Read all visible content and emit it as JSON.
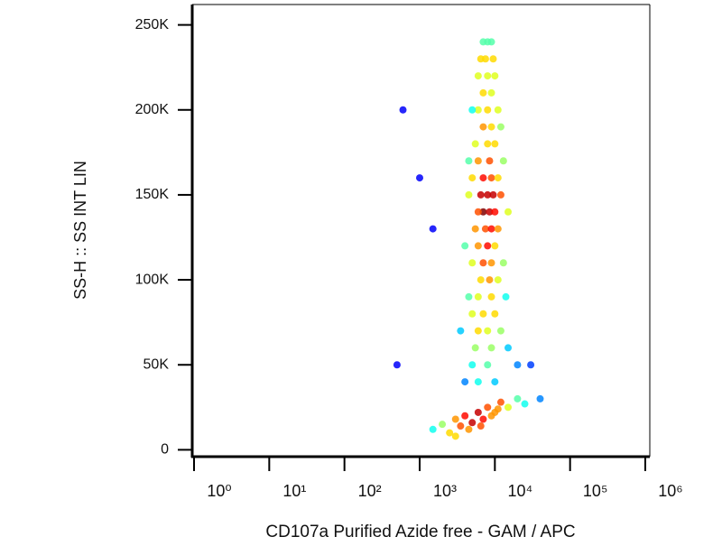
{
  "chart_data": {
    "type": "scatter",
    "xlabel": "CD107a Purified Azide free - GAM / APC",
    "ylabel": "SS-H :: SS INT LIN",
    "xscale": "log",
    "xlim": [
      1,
      1000000
    ],
    "ylim": [
      -3500,
      262000
    ],
    "xticks": [
      {
        "value": 1,
        "label": "10⁰"
      },
      {
        "value": 10,
        "label": "10¹"
      },
      {
        "value": 100,
        "label": "10²"
      },
      {
        "value": 1000,
        "label": "10³"
      },
      {
        "value": 10000,
        "label": "10⁴"
      },
      {
        "value": 100000,
        "label": "10⁵"
      },
      {
        "value": 1000000,
        "label": "10⁶"
      }
    ],
    "yticks": [
      0,
      {
        "value": 50000,
        "label": "50K"
      },
      {
        "value": 100000,
        "label": "100K"
      },
      {
        "value": 150000,
        "label": "150K"
      },
      {
        "value": 200000,
        "label": "200K"
      },
      {
        "value": 250000,
        "label": "250K"
      }
    ],
    "x": [
      7000,
      9000,
      8000,
      7500,
      9500,
      6500,
      8000,
      10000,
      6000,
      7000,
      9000,
      6000,
      8000,
      11000,
      5000,
      7000,
      9000,
      12000,
      5500,
      8000,
      10000,
      6000,
      8500,
      13000,
      4500,
      7000,
      9000,
      11000,
      5000,
      6500,
      8000,
      9500,
      12000,
      4500,
      7000,
      8500,
      10000,
      6000,
      15000,
      7500,
      9000,
      5500,
      11000,
      6000,
      8000,
      10000,
      4000,
      7000,
      9000,
      5000,
      13000,
      6500,
      8500,
      11000,
      6000,
      9000,
      4500,
      14000,
      7000,
      10000,
      5000,
      6000,
      8000,
      12000,
      3500,
      5500,
      9000,
      15000,
      5000,
      8000,
      20000,
      6000,
      10000,
      4000,
      1500,
      2000,
      2500,
      3000,
      3500,
      4000,
      5000,
      6000,
      7000,
      8000,
      10000,
      12000,
      15000,
      20000,
      25000,
      4500,
      3000,
      6500,
      9000,
      11000,
      600,
      1000,
      40000,
      500,
      30000,
      1500
    ],
    "values": [
      240000,
      240000,
      240000,
      230000,
      230000,
      230000,
      220000,
      220000,
      220000,
      210000,
      210000,
      200000,
      200000,
      200000,
      200000,
      190000,
      190000,
      190000,
      180000,
      180000,
      180000,
      170000,
      170000,
      170000,
      170000,
      160000,
      160000,
      160000,
      160000,
      150000,
      150000,
      150000,
      150000,
      150000,
      140000,
      140000,
      140000,
      140000,
      140000,
      130000,
      130000,
      130000,
      130000,
      120000,
      120000,
      120000,
      120000,
      110000,
      110000,
      110000,
      110000,
      100000,
      100000,
      100000,
      90000,
      90000,
      90000,
      90000,
      80000,
      80000,
      80000,
      70000,
      70000,
      70000,
      70000,
      60000,
      60000,
      60000,
      50000,
      50000,
      50000,
      40000,
      40000,
      40000,
      12000,
      15000,
      10000,
      18000,
      14000,
      20000,
      16000,
      22000,
      18000,
      25000,
      22000,
      28000,
      25000,
      30000,
      27000,
      12000,
      8000,
      14000,
      20000,
      24000,
      200000,
      160000,
      30000,
      50000,
      50000,
      130000
    ]
  }
}
